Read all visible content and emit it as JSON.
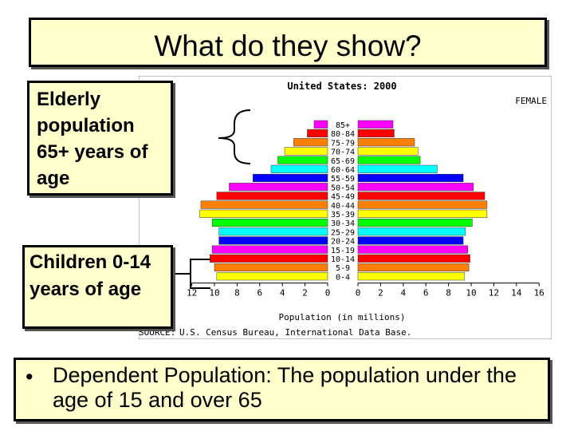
{
  "slide": {
    "title": "What do they show?",
    "elderly_label": "Elderly population 65+ years of age",
    "children_label": "Children 0-14 years of age",
    "note": "Dependent Population: The population under the age of 15 and over 65"
  },
  "chart_data": {
    "type": "bar",
    "title": "United States: 2000",
    "female_label": "FEMALE",
    "xlabel": "Population (in millions)",
    "source": "U.S. Census Bureau, International Data Base.",
    "source_prefix": "SOURCE:",
    "ticks_left": [
      "12",
      "10",
      "8",
      "6",
      "4",
      "2",
      "0"
    ],
    "ticks_right": [
      "0",
      "2",
      "4",
      "6",
      "8",
      "10",
      "12",
      "14",
      "16"
    ],
    "xlim": [
      0,
      16
    ],
    "categories": [
      "85+",
      "80-84",
      "75-79",
      "70-74",
      "65-69",
      "60-64",
      "55-59",
      "50-54",
      "45-49",
      "40-44",
      "35-39",
      "30-34",
      "25-29",
      "20-24",
      "15-19",
      "10-14",
      "5-9",
      "0-4"
    ],
    "bar_colors": [
      "#ff00ff",
      "#ff0000",
      "#ff8000",
      "#ffff00",
      "#00ff00",
      "#00ffff",
      "#0000ff",
      "#ff00ff",
      "#ff0000",
      "#ff8000",
      "#ffff00",
      "#00ff00",
      "#00ffff",
      "#0000ff",
      "#ff00ff",
      "#ff0000",
      "#ff8000",
      "#ffff00",
      "#00ff00",
      "#00ffff",
      "#0000ff"
    ],
    "series": [
      {
        "values": [
          1.2,
          1.8,
          3.0,
          3.8,
          4.4,
          5.0,
          6.6,
          8.7,
          9.8,
          11.2,
          11.3,
          10.2,
          9.6,
          9.6,
          10.2,
          10.4,
          10.0,
          9.8
        ]
      },
      {
        "name": "FEMALE",
        "values": [
          3.1,
          3.2,
          5.0,
          5.3,
          5.5,
          7.0,
          9.3,
          10.2,
          11.2,
          11.4,
          11.4,
          10.1,
          9.5,
          9.3,
          9.7,
          9.9,
          9.8,
          9.4
        ]
      }
    ]
  }
}
